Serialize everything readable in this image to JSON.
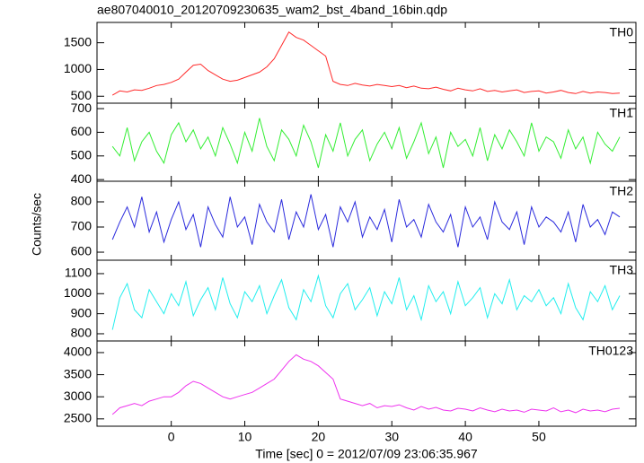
{
  "chart_data": [
    {
      "type": "line",
      "title": "ae807040010_20120709230635_wam2_bst_4band_16bin.qdp",
      "label": "TH0",
      "color": "#ff2a2a",
      "x": [
        -8,
        -7,
        -6,
        -5,
        -4,
        -3,
        -2,
        -1,
        0,
        1,
        2,
        3,
        4,
        5,
        6,
        7,
        8,
        9,
        10,
        11,
        12,
        13,
        14,
        15,
        16,
        17,
        18,
        19,
        20,
        21,
        22,
        23,
        24,
        25,
        26,
        27,
        28,
        29,
        30,
        31,
        32,
        33,
        34,
        35,
        36,
        37,
        38,
        39,
        40,
        41,
        42,
        43,
        44,
        45,
        46,
        47,
        48,
        49,
        50,
        51,
        52,
        53,
        54,
        55,
        56,
        57,
        58,
        59,
        60,
        61
      ],
      "values": [
        520,
        600,
        580,
        620,
        610,
        650,
        700,
        720,
        760,
        820,
        950,
        1080,
        1100,
        980,
        900,
        820,
        780,
        800,
        850,
        900,
        950,
        1050,
        1200,
        1450,
        1700,
        1600,
        1550,
        1450,
        1350,
        1250,
        780,
        720,
        700,
        740,
        710,
        690,
        720,
        700,
        680,
        700,
        660,
        690,
        650,
        640,
        670,
        630,
        600,
        650,
        620,
        600,
        640,
        590,
        610,
        580,
        600,
        620,
        570,
        590,
        600,
        560,
        580,
        610,
        570,
        550,
        590,
        560,
        580,
        570,
        550,
        560
      ],
      "xlim": [
        -10.1,
        63.2
      ],
      "ylim": [
        370,
        1880
      ],
      "yticks": [
        500,
        1000,
        1500
      ]
    },
    {
      "type": "line",
      "label": "TH1",
      "color": "#33ee33",
      "x": [
        -8,
        -7,
        -6,
        -5,
        -4,
        -3,
        -2,
        -1,
        0,
        1,
        2,
        3,
        4,
        5,
        6,
        7,
        8,
        9,
        10,
        11,
        12,
        13,
        14,
        15,
        16,
        17,
        18,
        19,
        20,
        21,
        22,
        23,
        24,
        25,
        26,
        27,
        28,
        29,
        30,
        31,
        32,
        33,
        34,
        35,
        36,
        37,
        38,
        39,
        40,
        41,
        42,
        43,
        44,
        45,
        46,
        47,
        48,
        49,
        50,
        51,
        52,
        53,
        54,
        55,
        56,
        57,
        58,
        59,
        60,
        61
      ],
      "values": [
        540,
        500,
        620,
        480,
        560,
        600,
        520,
        470,
        590,
        640,
        560,
        610,
        530,
        580,
        500,
        620,
        550,
        470,
        600,
        520,
        660,
        540,
        480,
        610,
        570,
        500,
        630,
        560,
        450,
        590,
        520,
        640,
        500,
        570,
        610,
        480,
        550,
        600,
        530,
        620,
        490,
        560,
        640,
        510,
        580,
        450,
        600,
        540,
        570,
        500,
        620,
        480,
        590,
        530,
        610,
        560,
        500,
        640,
        520,
        580,
        560,
        490,
        610,
        530,
        580,
        470,
        600,
        550,
        520,
        580
      ],
      "xlim": [
        -10.1,
        63.2
      ],
      "ylim": [
        393,
        723
      ],
      "yticks": [
        400,
        500,
        600,
        700
      ]
    },
    {
      "type": "line",
      "label": "TH2",
      "ylabel": "Counts/sec",
      "color": "#2b2bdd",
      "x": [
        -8,
        -7,
        -6,
        -5,
        -4,
        -3,
        -2,
        -1,
        0,
        1,
        2,
        3,
        4,
        5,
        6,
        7,
        8,
        9,
        10,
        11,
        12,
        13,
        14,
        15,
        16,
        17,
        18,
        19,
        20,
        21,
        22,
        23,
        24,
        25,
        26,
        27,
        28,
        29,
        30,
        31,
        32,
        33,
        34,
        35,
        36,
        37,
        38,
        39,
        40,
        41,
        42,
        43,
        44,
        45,
        46,
        47,
        48,
        49,
        50,
        51,
        52,
        53,
        54,
        55,
        56,
        57,
        58,
        59,
        60,
        61
      ],
      "values": [
        650,
        720,
        780,
        700,
        820,
        680,
        760,
        640,
        730,
        800,
        690,
        750,
        620,
        780,
        710,
        660,
        820,
        700,
        740,
        630,
        790,
        720,
        680,
        810,
        650,
        760,
        700,
        830,
        690,
        750,
        620,
        780,
        720,
        800,
        660,
        740,
        690,
        770,
        640,
        810,
        700,
        730,
        660,
        790,
        720,
        680,
        750,
        620,
        780,
        700,
        740,
        650,
        800,
        720,
        690,
        760,
        630,
        780,
        700,
        740,
        720,
        680,
        760,
        640,
        790,
        700,
        730,
        670,
        760,
        740
      ],
      "xlim": [
        -10.1,
        63.2
      ],
      "ylim": [
        568,
        882
      ],
      "yticks": [
        600,
        700,
        800
      ]
    },
    {
      "type": "line",
      "label": "TH3",
      "color": "#22eeee",
      "x": [
        -8,
        -7,
        -6,
        -5,
        -4,
        -3,
        -2,
        -1,
        0,
        1,
        2,
        3,
        4,
        5,
        6,
        7,
        8,
        9,
        10,
        11,
        12,
        13,
        14,
        15,
        16,
        17,
        18,
        19,
        20,
        21,
        22,
        23,
        24,
        25,
        26,
        27,
        28,
        29,
        30,
        31,
        32,
        33,
        34,
        35,
        36,
        37,
        38,
        39,
        40,
        41,
        42,
        43,
        44,
        45,
        46,
        47,
        48,
        49,
        50,
        51,
        52,
        53,
        54,
        55,
        56,
        57,
        58,
        59,
        60,
        61
      ],
      "values": [
        820,
        980,
        1050,
        920,
        880,
        1020,
        960,
        900,
        1000,
        940,
        1060,
        890,
        970,
        1030,
        920,
        1080,
        950,
        880,
        1010,
        960,
        1040,
        900,
        990,
        1070,
        930,
        870,
        1020,
        960,
        1090,
        940,
        880,
        1000,
        1050,
        920,
        970,
        1030,
        890,
        1010,
        950,
        1080,
        920,
        990,
        870,
        1040,
        960,
        1010,
        900,
        1060,
        940,
        980,
        1030,
        880,
        1000,
        950,
        1070,
        920,
        990,
        960,
        1020,
        940,
        980,
        900,
        1050,
        930,
        870,
        1010,
        960,
        1040,
        920,
        990
      ],
      "xlim": [
        -10.1,
        63.2
      ],
      "ylim": [
        764,
        1167
      ],
      "yticks": [
        800,
        900,
        1000,
        1100
      ]
    },
    {
      "type": "line",
      "label": "TH0123",
      "xlabel": "Time [sec] 0 = 2012/07/09 23:06:35.967",
      "color": "#ee33ee",
      "x": [
        -8,
        -7,
        -6,
        -5,
        -4,
        -3,
        -2,
        -1,
        0,
        1,
        2,
        3,
        4,
        5,
        6,
        7,
        8,
        9,
        10,
        11,
        12,
        13,
        14,
        15,
        16,
        17,
        18,
        19,
        20,
        21,
        22,
        23,
        24,
        25,
        26,
        27,
        28,
        29,
        30,
        31,
        32,
        33,
        34,
        35,
        36,
        37,
        38,
        39,
        40,
        41,
        42,
        43,
        44,
        45,
        46,
        47,
        48,
        49,
        50,
        51,
        52,
        53,
        54,
        55,
        56,
        57,
        58,
        59,
        60,
        61
      ],
      "values": [
        2600,
        2750,
        2800,
        2850,
        2800,
        2900,
        2950,
        3000,
        3000,
        3100,
        3250,
        3350,
        3300,
        3200,
        3100,
        3000,
        2950,
        3000,
        3050,
        3100,
        3200,
        3300,
        3400,
        3600,
        3800,
        3950,
        3850,
        3800,
        3700,
        3550,
        3400,
        2950,
        2900,
        2850,
        2800,
        2850,
        2750,
        2800,
        2780,
        2820,
        2750,
        2700,
        2780,
        2720,
        2760,
        2700,
        2680,
        2740,
        2720,
        2680,
        2750,
        2700,
        2660,
        2720,
        2680,
        2700,
        2650,
        2720,
        2700,
        2680,
        2750,
        2660,
        2700,
        2640,
        2720,
        2680,
        2700,
        2660,
        2720,
        2740
      ],
      "xlim": [
        -10.1,
        63.2
      ],
      "ylim": [
        2334,
        4263
      ],
      "yticks": [
        2500,
        3000,
        3500,
        4000
      ],
      "xticks": [
        0,
        10,
        20,
        30,
        40,
        50
      ]
    }
  ]
}
